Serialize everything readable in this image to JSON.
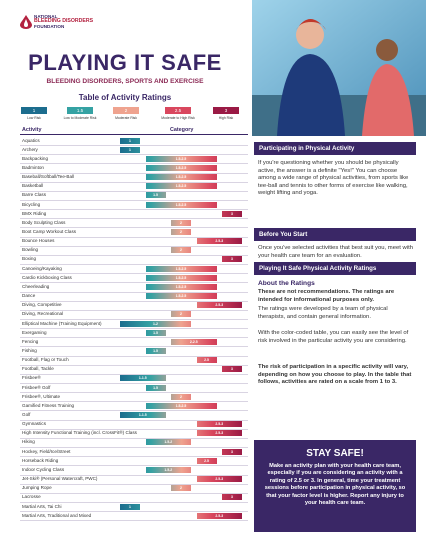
{
  "header": {
    "org": [
      "NATIONAL",
      "BLEEDING DISORDERS",
      "FOUNDATION"
    ],
    "title": "PLAYING IT SAFE",
    "subtitle": "BLEEDING DISORDERS, SPORTS AND EXERCISE",
    "table_title": "Table of Activity Ratings"
  },
  "legend": [
    {
      "value": "1",
      "label": "Low Risk",
      "color": "#1c6d8e"
    },
    {
      "value": "1.5",
      "label": "Low to Moderate Risk",
      "color": "#35a2a3"
    },
    {
      "value": "2",
      "label": "Moderate Risk",
      "color": "#efa38f"
    },
    {
      "value": "2.5",
      "label": "Moderate to High Risk",
      "color": "#d9475e"
    },
    {
      "value": "3",
      "label": "High Risk",
      "color": "#9a1a45"
    }
  ],
  "table": {
    "columns": [
      "Activity",
      "Category"
    ],
    "rows": [
      [
        "Aquatics",
        "1"
      ],
      [
        "Archery",
        "1"
      ],
      [
        "Backpacking",
        "1.5-2.5"
      ],
      [
        "Badminton",
        "1.5-2.5"
      ],
      [
        "Baseball/Softball/Tee-Ball",
        "1.5-2.5"
      ],
      [
        "Basketball",
        "1.5-2.5"
      ],
      [
        "Barre Class",
        "1.5"
      ],
      [
        "Bicycling",
        "1.5-2.5"
      ],
      [
        "BMX Riding",
        "3"
      ],
      [
        "Body Sculpting Class",
        "2"
      ],
      [
        "Boot Camp Workout Class",
        "2"
      ],
      [
        "Bounce Houses",
        "2.5-3"
      ],
      [
        "Bowling",
        "2"
      ],
      [
        "Boxing",
        "3"
      ],
      [
        "Canoeing/Kayaking",
        "1.5-2.5"
      ],
      [
        "Cardio Kickboxing Class",
        "1.5-2.5"
      ],
      [
        "Cheerleading",
        "1.5-2.5"
      ],
      [
        "Dance",
        "1.5-2.5"
      ],
      [
        "Diving, Competitive",
        "2.5-3"
      ],
      [
        "Diving, Recreational",
        "2"
      ],
      [
        "Elliptical Machine (Training Equipment)",
        "1-2"
      ],
      [
        "Exergaming",
        "1.5"
      ],
      [
        "Fencing",
        "2-2.5"
      ],
      [
        "Fishing",
        "1.5"
      ],
      [
        "Football, Flag or Touch",
        "2.5"
      ],
      [
        "Football, Tackle",
        "3"
      ],
      [
        "Frisbee®",
        "1-1.5"
      ],
      [
        "Frisbee® Golf",
        "1.5"
      ],
      [
        "Frisbee®, Ultimate",
        "2"
      ],
      [
        "Gamified Fitness Training",
        "1.5-2.5"
      ],
      [
        "Golf",
        "1-1.5"
      ],
      [
        "Gymnastics",
        "2.5-3"
      ],
      [
        "High Intensity Functional Training (incl. CrossFit®) Class",
        "2.5-3"
      ],
      [
        "Hiking",
        "1.5-2"
      ],
      [
        "Hockey, Field/Ice/Street",
        "3"
      ],
      [
        "Horseback Riding",
        "2.5"
      ],
      [
        "Indoor Cycling Class",
        "1.5-2"
      ],
      [
        "Jet-Ski® (Personal Watercraft, PWC)",
        "2.5-3"
      ],
      [
        "Jumping Rope",
        "2"
      ],
      [
        "Lacrosse",
        "3"
      ],
      [
        "Martial Arts, Tai Chi",
        "1"
      ],
      [
        "Martial Arts, Traditional and Mixed",
        "2.5-3"
      ]
    ]
  },
  "sidebar": {
    "s1_title": "Participating in Physical Activity",
    "s1_text": "If you're questioning whether you should be physically active, the answer is a definite \"Yes!\" You can choose among a wide range of physical activities, from sports like tee-ball and tennis to other forms of exercise like walking, weight lifting and yoga.",
    "s2_title": "Before You Start",
    "s2_text": "Once you've selected activities that best suit you, meet with your health care team for an evaluation.",
    "s3_title": "Playing It Safe Physical Activity Ratings",
    "s3_sub": "About the Ratings",
    "s3_p1": "These are not recommendations. The ratings are intended for informational purposes only.",
    "s3_p2": "The ratings were developed by a team of physical therapists, and contain general information.",
    "s3_p3": "With the color-coded table, you can easily see the level of risk involved in the particular activity you are considering.",
    "s3_p4": "The risk of participation in a specific activity will vary, depending on how you choose to play. In the table that follows, activities are rated on a scale from 1 to 3.",
    "box_title": "STAY SAFE!",
    "box_text": "Make an activity plan with your health care team, especially if you are considering an activity with a rating of 2.5 or 3. In general, time your treatment sessions before participation in physical activity, so that your factor level is higher. Report any injury to your health care team."
  }
}
